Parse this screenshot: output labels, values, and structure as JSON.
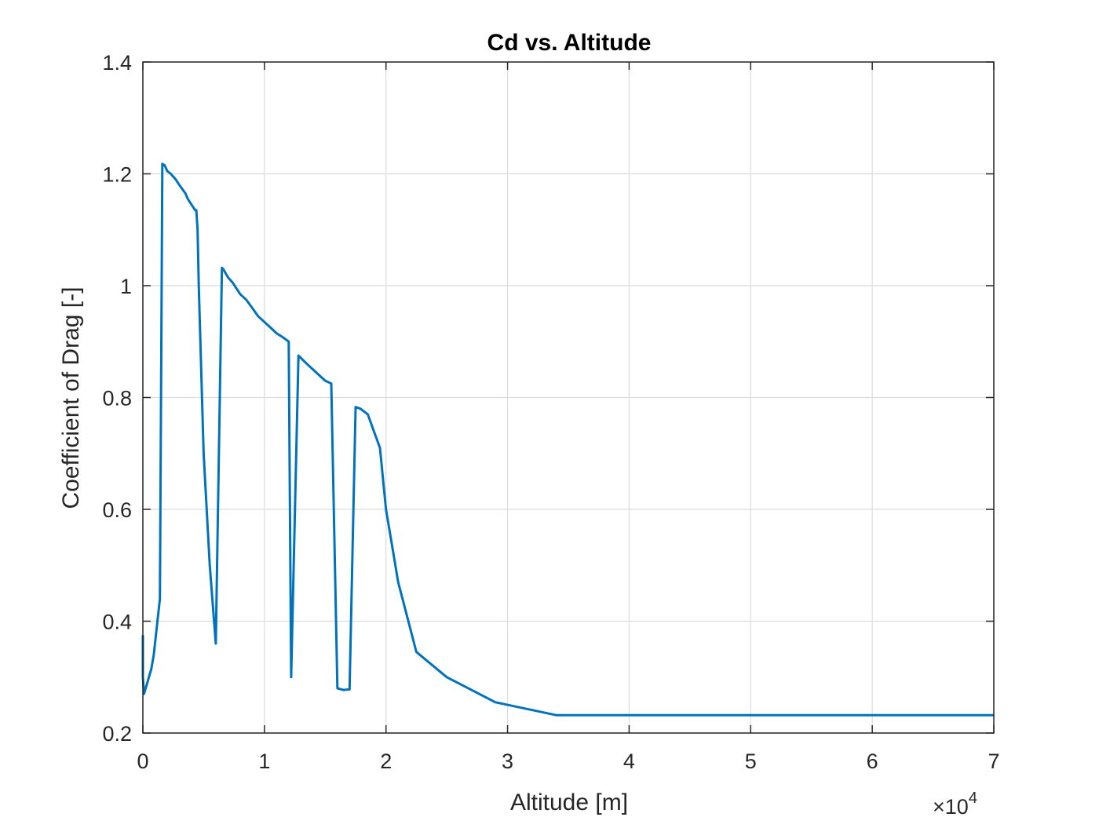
{
  "chart_data": {
    "type": "line",
    "title": "Cd vs. Altitude",
    "xlabel": "Altitude [m]",
    "ylabel": "Coefficient of Drag [-]",
    "xlim": [
      0,
      70000
    ],
    "ylim": [
      0.2,
      1.4
    ],
    "x_exponent_label": {
      "base": "×10",
      "exponent": "4"
    },
    "xticks": [
      0,
      10000,
      20000,
      30000,
      40000,
      50000,
      60000,
      70000
    ],
    "xtick_labels": [
      "0",
      "1",
      "2",
      "3",
      "4",
      "5",
      "6",
      "7"
    ],
    "yticks": [
      0.2,
      0.4,
      0.6,
      0.8,
      1.0,
      1.2,
      1.4
    ],
    "ytick_labels": [
      "0.2",
      "0.4",
      "0.6",
      "0.8",
      "1",
      "1.2",
      "1.4"
    ],
    "grid": true,
    "line_color": "#0072BD",
    "series": [
      {
        "x": [
          0,
          0,
          100,
          300,
          500,
          700,
          900,
          1100,
          1400,
          1600,
          1800,
          2000,
          2300,
          2700,
          3000,
          3500,
          3700,
          4000,
          4300,
          4400,
          4500,
          4600,
          4800,
          5000,
          5500,
          6000,
          6500,
          6600,
          7000,
          7400,
          8000,
          8500,
          9000,
          9500,
          10000,
          10500,
          11000,
          11500,
          12000,
          12200,
          12800,
          13500,
          14000,
          14500,
          15000,
          15500,
          16000,
          16500,
          17000,
          17500,
          17900,
          18500,
          19000,
          19500,
          20000,
          20500,
          21000,
          22500,
          25000,
          29000,
          34000,
          70000
        ],
        "y": [
          0.375,
          0.3,
          0.27,
          0.285,
          0.3,
          0.315,
          0.34,
          0.38,
          0.44,
          1.218,
          1.215,
          1.205,
          1.2,
          1.19,
          1.18,
          1.165,
          1.155,
          1.145,
          1.135,
          1.135,
          1.1,
          1.0,
          0.85,
          0.7,
          0.5,
          0.36,
          1.032,
          1.03,
          1.015,
          1.005,
          0.985,
          0.975,
          0.96,
          0.945,
          0.935,
          0.925,
          0.915,
          0.908,
          0.9,
          0.3,
          0.875,
          0.86,
          0.85,
          0.84,
          0.83,
          0.825,
          0.28,
          0.277,
          0.278,
          0.783,
          0.78,
          0.77,
          0.74,
          0.71,
          0.6,
          0.535,
          0.47,
          0.345,
          0.3,
          0.255,
          0.232,
          0.232
        ]
      }
    ]
  }
}
